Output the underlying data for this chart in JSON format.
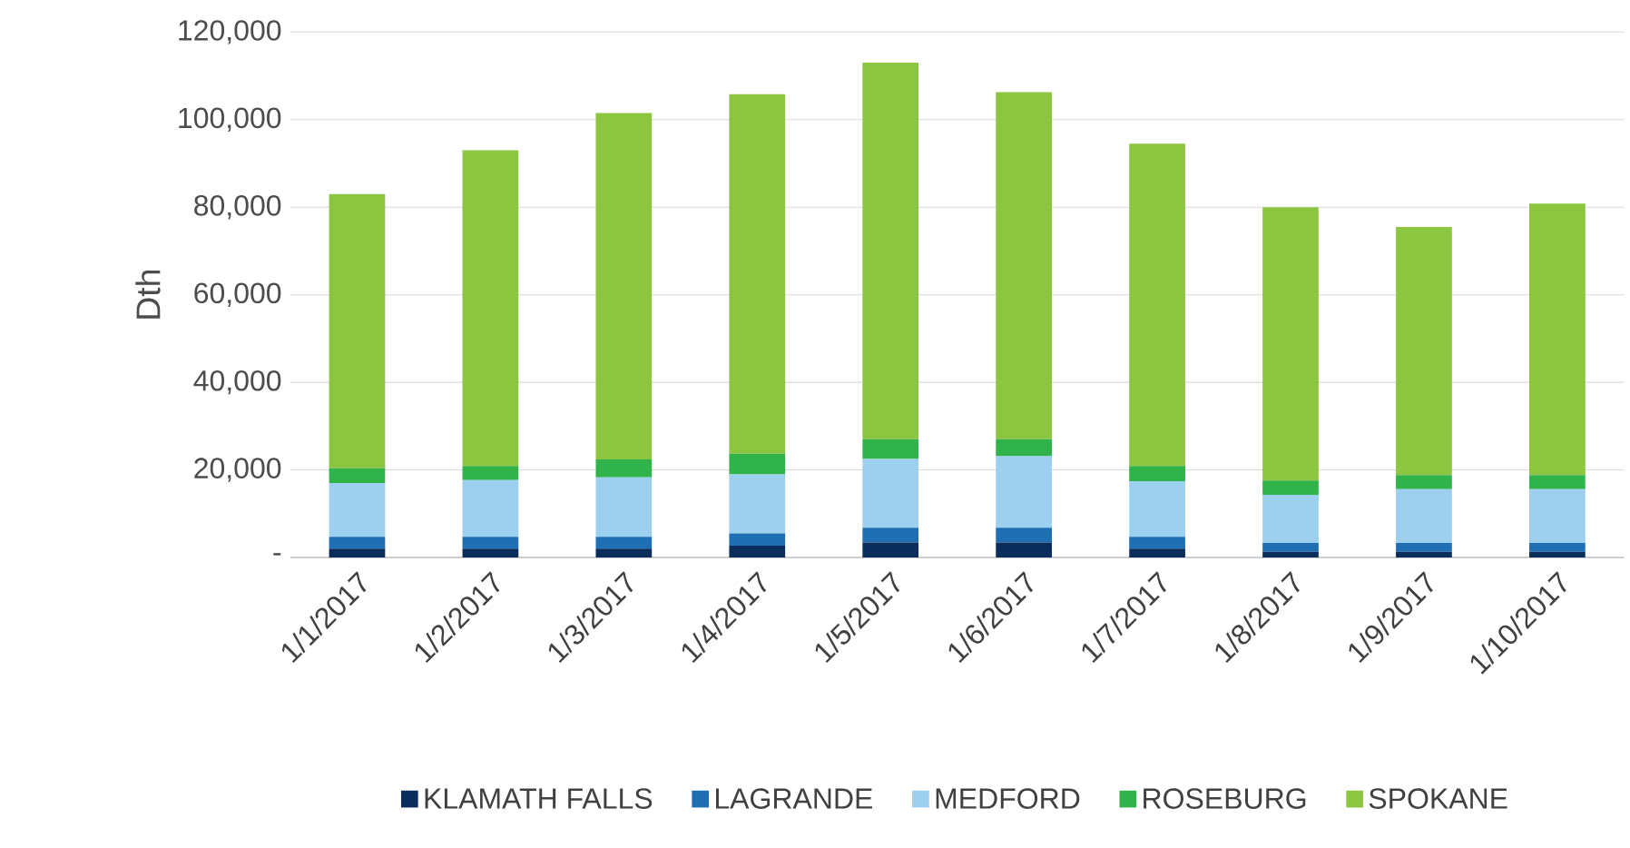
{
  "chart_data": {
    "type": "bar",
    "stacked": true,
    "ylabel": "Dth",
    "categories": [
      "1/1/2017",
      "1/2/2017",
      "1/3/2017",
      "1/4/2017",
      "1/5/2017",
      "1/6/2017",
      "1/7/2017",
      "1/8/2017",
      "1/9/2017",
      "1/10/2017"
    ],
    "series": [
      {
        "name": "KLAMATH FALLS",
        "color": "#0b2d5b",
        "values": [
          2000,
          2000,
          2000,
          2700,
          3400,
          3400,
          2000,
          1300,
          1300,
          1300
        ]
      },
      {
        "name": "LAGRANDE",
        "color": "#1f6fb5",
        "values": [
          2700,
          2700,
          2700,
          2800,
          3400,
          3400,
          2700,
          2000,
          2000,
          2000
        ]
      },
      {
        "name": "MEDFORD",
        "color": "#9dcfef",
        "values": [
          12300,
          13000,
          13600,
          13500,
          15700,
          16300,
          12700,
          11000,
          12300,
          12300
        ]
      },
      {
        "name": "ROSEBURG",
        "color": "#2fb34a",
        "values": [
          3400,
          3200,
          4100,
          4700,
          4500,
          3900,
          3500,
          3300,
          3200,
          3200
        ]
      },
      {
        "name": "SPOKANE",
        "color": "#8cc540",
        "values": [
          62600,
          72100,
          79100,
          82100,
          86000,
          79300,
          73600,
          62400,
          56700,
          62000
        ]
      }
    ],
    "ylim": [
      0,
      120000
    ],
    "yticks": [
      {
        "value": 0,
        "label": "-"
      },
      {
        "value": 20000,
        "label": "20,000"
      },
      {
        "value": 40000,
        "label": "40,000"
      },
      {
        "value": 60000,
        "label": "60,000"
      },
      {
        "value": 80000,
        "label": "80,000"
      },
      {
        "value": 100000,
        "label": "100,000"
      },
      {
        "value": 120000,
        "label": "120,000"
      }
    ],
    "grid": "y",
    "legend": "bottom"
  }
}
